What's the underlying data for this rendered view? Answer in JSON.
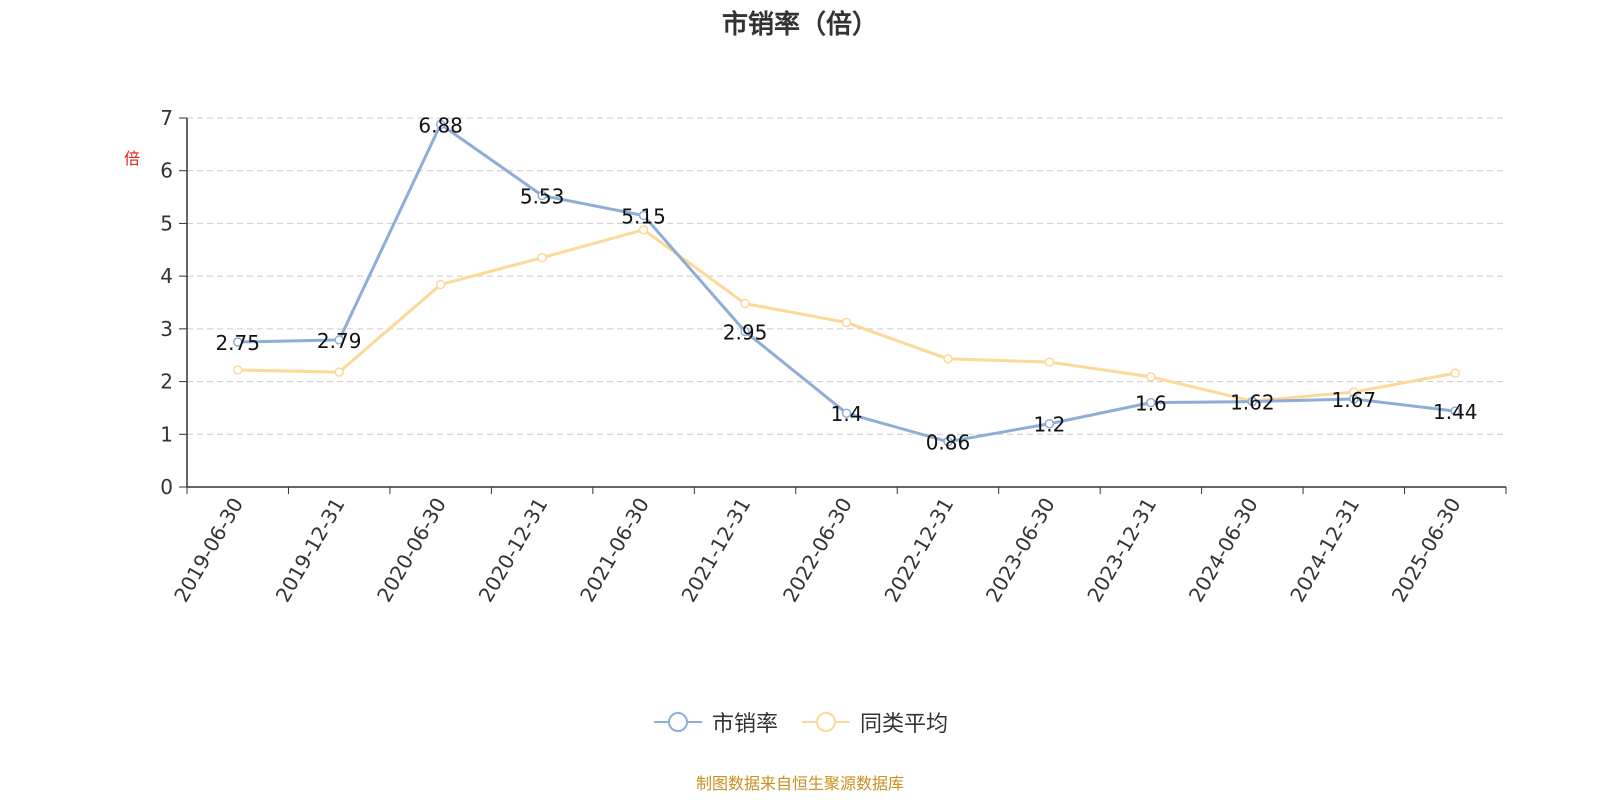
{
  "title": "市销率（倍）",
  "unit": "倍",
  "source": "制图数据来自恒生聚源数据库",
  "colors": {
    "series1": "#8eaed8",
    "series2": "#fcd998",
    "grid": "#cccccc",
    "axis": "#333333"
  },
  "chart_data": {
    "type": "line",
    "title": "市销率（倍）",
    "ylabel": "倍",
    "ylim": [
      0,
      7
    ],
    "yticks": [
      0,
      1,
      2,
      3,
      4,
      5,
      6,
      7
    ],
    "grid": true,
    "legend_position": "bottom",
    "categories": [
      "2019-06-30",
      "2019-12-31",
      "2020-06-30",
      "2020-12-31",
      "2021-06-30",
      "2021-12-31",
      "2022-06-30",
      "2022-12-31",
      "2023-06-30",
      "2023-12-31",
      "2024-06-30",
      "2024-12-31",
      "2025-06-30"
    ],
    "series": [
      {
        "name": "市销率",
        "values": [
          2.75,
          2.79,
          6.88,
          5.53,
          5.15,
          2.95,
          1.4,
          0.86,
          1.2,
          1.6,
          1.62,
          1.67,
          1.44
        ],
        "labels": [
          "2.75",
          "2.79",
          "6.88",
          "5.53",
          "5.15",
          "2.95",
          "1.4",
          "0.86",
          "1.2",
          "1.6",
          "1.62",
          "1.67",
          "1.44"
        ]
      },
      {
        "name": "同类平均",
        "values": [
          2.22,
          2.18,
          3.84,
          4.35,
          4.88,
          3.48,
          3.12,
          2.43,
          2.37,
          2.09,
          1.63,
          1.8,
          2.16
        ]
      }
    ]
  }
}
